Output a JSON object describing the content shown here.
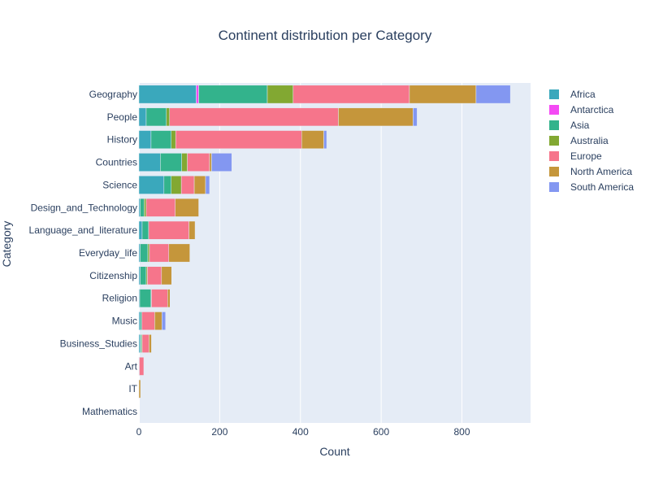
{
  "chart_data": {
    "type": "bar",
    "orientation": "horizontal",
    "barmode": "stack",
    "title": "Continent distribution per Category",
    "xlabel": "Count",
    "ylabel": "Category",
    "xlim": [
      0,
      970
    ],
    "xticks": [
      0,
      200,
      400,
      600,
      800
    ],
    "xtick_labels": [
      "0",
      "200",
      "400",
      "600",
      "800"
    ],
    "grid": true,
    "legend_position": "right",
    "categories": [
      "Geography",
      "People",
      "History",
      "Countries",
      "Science",
      "Design_and_Technology",
      "Language_and_literature",
      "Everyday_life",
      "Citizenship",
      "Religion",
      "Music",
      "Business_Studies",
      "Art",
      "IT",
      "Mathematics"
    ],
    "series": [
      {
        "name": "Africa",
        "color": "#3aa8bc",
        "values": [
          142,
          18,
          30,
          53,
          62,
          3,
          8,
          3,
          3,
          2,
          3,
          3,
          1,
          0,
          0
        ]
      },
      {
        "name": "Antarctica",
        "color": "#f44af4",
        "values": [
          6,
          0,
          0,
          0,
          0,
          0,
          0,
          0,
          0,
          0,
          0,
          0,
          0,
          0,
          0
        ]
      },
      {
        "name": "Asia",
        "color": "#33b38c",
        "values": [
          170,
          50,
          50,
          53,
          18,
          10,
          16,
          19,
          15,
          28,
          4,
          3,
          0,
          0,
          0
        ]
      },
      {
        "name": "Australia",
        "color": "#82a832",
        "values": [
          64,
          8,
          11,
          14,
          25,
          5,
          0,
          4,
          3,
          1,
          0,
          2,
          0,
          0,
          0
        ]
      },
      {
        "name": "Europe",
        "color": "#f6758b",
        "values": [
          288,
          418,
          312,
          55,
          32,
          72,
          100,
          48,
          35,
          40,
          32,
          17,
          11,
          0,
          0
        ]
      },
      {
        "name": "North America",
        "color": "#c5963b",
        "values": [
          165,
          185,
          55,
          5,
          28,
          58,
          15,
          52,
          25,
          6,
          18,
          6,
          0,
          4,
          0
        ]
      },
      {
        "name": "South America",
        "color": "#8397f1",
        "values": [
          85,
          10,
          7,
          50,
          10,
          0,
          0,
          0,
          0,
          0,
          9,
          0,
          0,
          0,
          0
        ]
      }
    ]
  }
}
